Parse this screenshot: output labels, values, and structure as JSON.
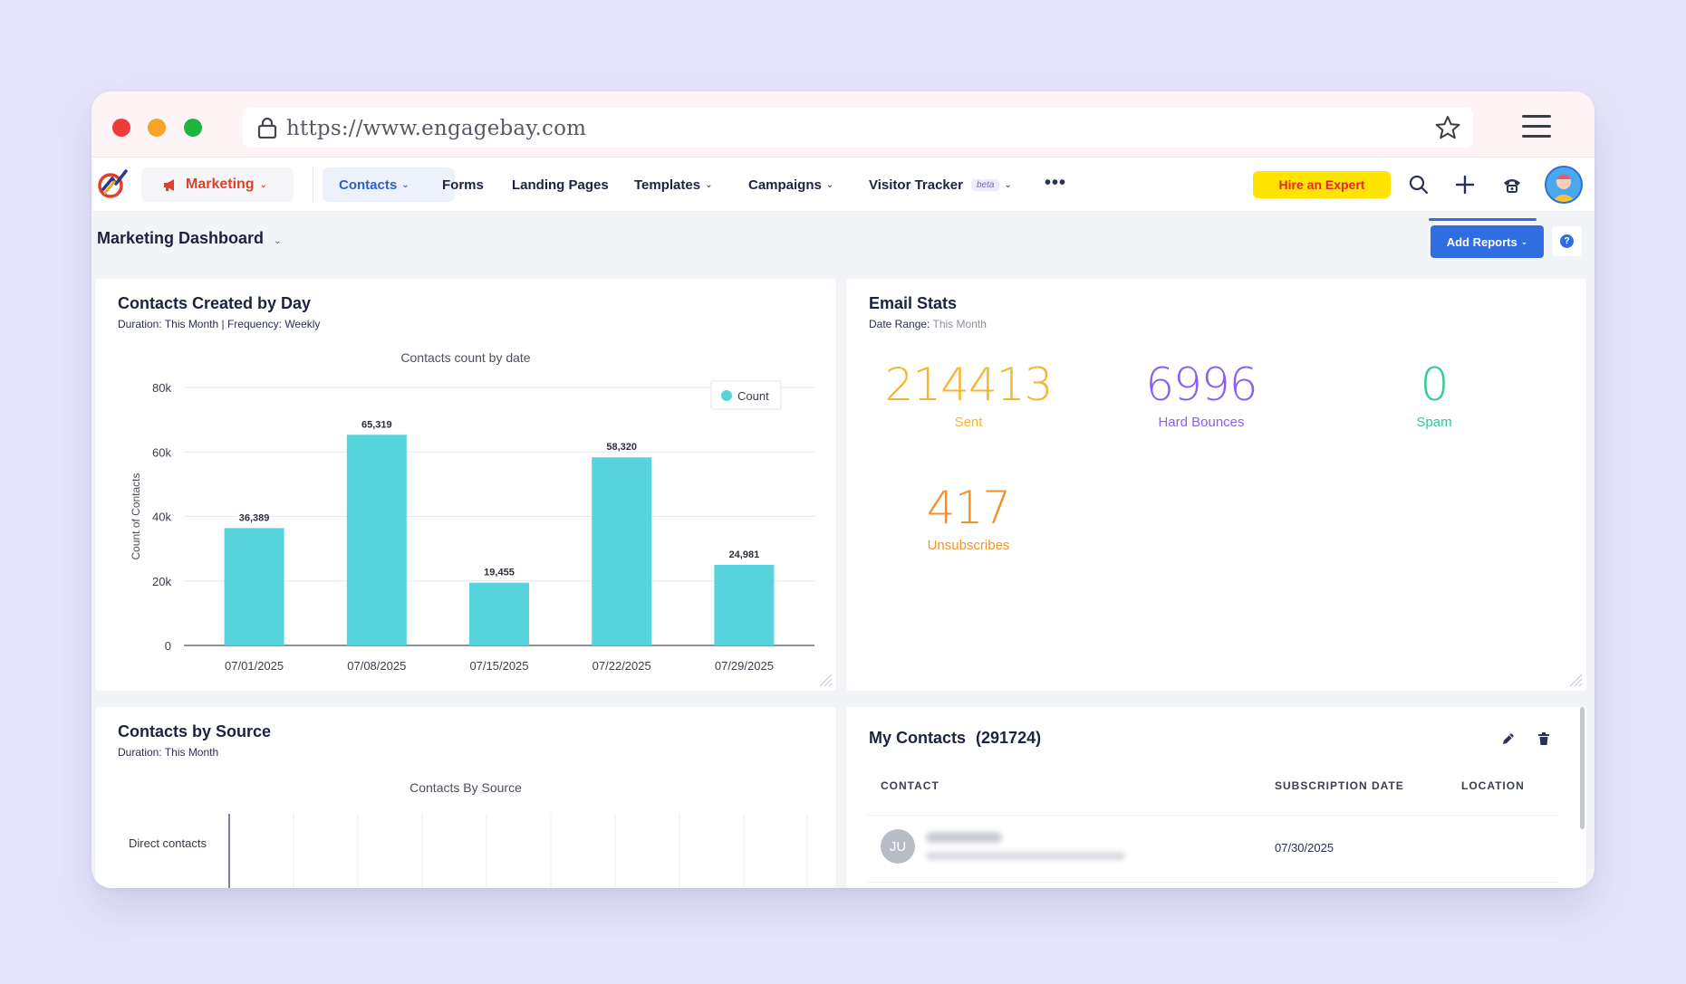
{
  "browser": {
    "url": "https://www.engagebay.com"
  },
  "nav": {
    "marketing": "Marketing",
    "contacts": "Contacts",
    "forms": "Forms",
    "landing_pages": "Landing Pages",
    "templates": "Templates",
    "campaigns": "Campaigns",
    "visitor_tracker": "Visitor Tracker",
    "beta": "beta",
    "more": "•••",
    "hire_expert": "Hire an Expert"
  },
  "dashboard": {
    "title": "Marketing Dashboard",
    "add_reports": "Add Reports",
    "help": "?"
  },
  "contacts_created": {
    "title": "Contacts Created by Day",
    "duration_label": "Duration: This Month | Frequency: Weekly"
  },
  "chart_data": {
    "type": "bar",
    "title": "Contacts count by date",
    "xlabel": "",
    "ylabel": "Count of Contacts",
    "categories": [
      "07/01/2025",
      "07/08/2025",
      "07/15/2025",
      "07/22/2025",
      "07/29/2025"
    ],
    "series": [
      {
        "name": "Count",
        "values": [
          36389,
          65319,
          19455,
          58320,
          24981
        ],
        "labels": [
          "36,389",
          "65,319",
          "19,455",
          "58,320",
          "24,981"
        ]
      }
    ],
    "ylim": [
      0,
      80000
    ],
    "yticks": [
      0,
      20000,
      40000,
      60000,
      80000
    ],
    "ytick_labels": [
      "0",
      "20k",
      "40k",
      "60k",
      "80k"
    ],
    "grid": true,
    "legend": "top-right",
    "color": "#56d3dc"
  },
  "email_stats": {
    "title": "Email Stats",
    "date_range_label": "Date Range:",
    "date_range_value": "This Month",
    "stats": [
      {
        "value": "214413",
        "label": "Sent",
        "color": "#f6b52c"
      },
      {
        "value": "6996",
        "label": "Hard Bounces",
        "color": "#8b5cf6"
      },
      {
        "value": "0",
        "label": "Spam",
        "color": "#2ecc8f"
      },
      {
        "value": "417",
        "label": "Unsubscribes",
        "color": "#f39229"
      }
    ]
  },
  "contacts_by_source": {
    "title": "Contacts by Source",
    "duration_label": "Duration: This Month",
    "chart_title": "Contacts By Source",
    "row_label": "Direct contacts"
  },
  "my_contacts": {
    "title": "My Contacts",
    "count": "(291724)",
    "columns": [
      "CONTACT",
      "SUBSCRIPTION DATE",
      "LOCATION"
    ],
    "rows": [
      {
        "initials": "JU",
        "subscription_date": "07/30/2025",
        "location": ""
      }
    ]
  }
}
